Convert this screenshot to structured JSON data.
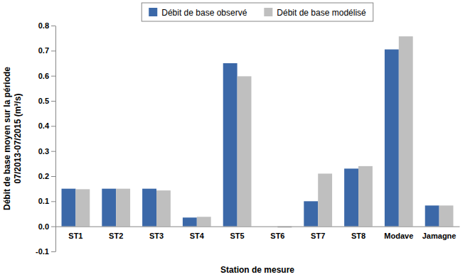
{
  "chart_data": {
    "type": "bar",
    "x_label": "Station de mesure",
    "y_label": [
      "Débit de base moyen sur la période",
      "07/2013-07/2015 (m³/s)"
    ],
    "categories": [
      "ST1",
      "ST2",
      "ST3",
      "ST4",
      "ST5",
      "ST6",
      "ST7",
      "ST8",
      "Modave",
      "Jamagne"
    ],
    "series": [
      {
        "name": "Débit de base observé",
        "color": "#3B68A8",
        "values": [
          0.15,
          0.15,
          0.15,
          0.035,
          0.65,
          0.0,
          0.1,
          0.23,
          0.705,
          0.083
        ]
      },
      {
        "name": "Débit de base modélisé",
        "color": "#BFBFBF",
        "values": [
          0.148,
          0.15,
          0.143,
          0.038,
          0.598,
          -0.005,
          0.21,
          0.24,
          0.757,
          0.083
        ]
      }
    ],
    "ylim": [
      -0.1,
      0.8
    ],
    "yticks": [
      -0.1,
      {
        "value": 0,
        "label": "0.0"
      },
      0.1,
      0.2,
      0.3,
      0.4,
      0.5,
      0.6,
      0.7,
      0.8
    ],
    "grid": false,
    "legend": "top"
  }
}
